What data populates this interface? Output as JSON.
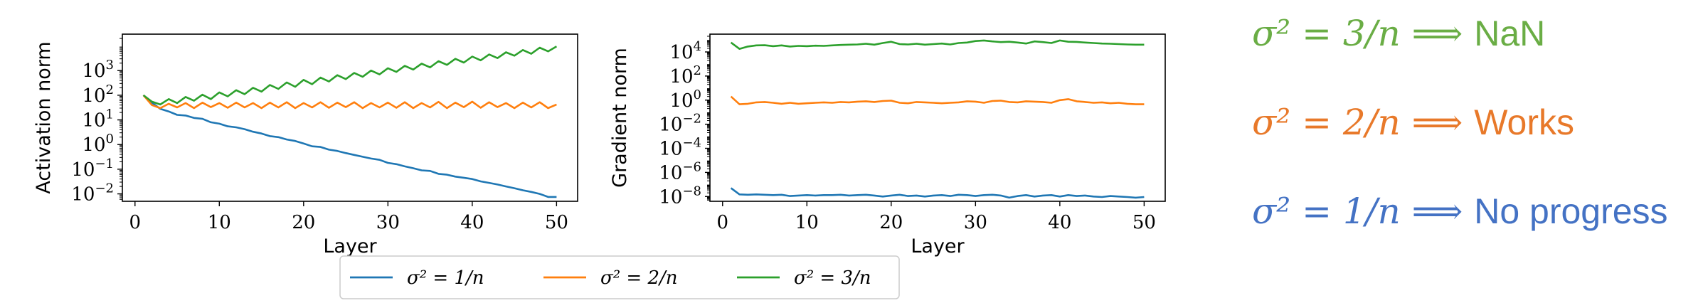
{
  "chart_data": [
    {
      "type": "line",
      "xlabel": "Layer",
      "ylabel": "Activation norm",
      "yscale": "log",
      "xlim": [
        1,
        50
      ],
      "ylim": [
        0.003,
        30000
      ],
      "xticks": [
        0,
        10,
        20,
        30,
        40,
        50
      ],
      "yticks": [
        {
          "value": 0.01,
          "base": "10",
          "exp": "−2"
        },
        {
          "value": 0.1,
          "base": "10",
          "exp": "−1"
        },
        {
          "value": 1,
          "base": "10",
          "exp": "0"
        },
        {
          "value": 10,
          "base": "10",
          "exp": "1"
        },
        {
          "value": 100,
          "base": "10",
          "exp": "2"
        },
        {
          "value": 1000,
          "base": "10",
          "exp": "3"
        }
      ],
      "grid": false,
      "series": [
        {
          "name": "σ² = 1/n",
          "color": "#1f77b4",
          "x": [
            1,
            2,
            3,
            4,
            5,
            6,
            7,
            8,
            9,
            10,
            11,
            12,
            13,
            14,
            15,
            16,
            17,
            18,
            19,
            20,
            21,
            22,
            23,
            24,
            25,
            26,
            27,
            28,
            29,
            30,
            31,
            32,
            33,
            34,
            35,
            36,
            37,
            38,
            39,
            40,
            41,
            42,
            43,
            44,
            45,
            46,
            47,
            48,
            49,
            50
          ],
          "values": [
            100,
            50,
            28,
            22,
            16,
            15,
            12,
            11,
            8,
            7,
            5.5,
            5,
            4.2,
            3.3,
            2.8,
            2.2,
            2.0,
            1.6,
            1.4,
            1.1,
            0.85,
            0.8,
            0.62,
            0.55,
            0.45,
            0.38,
            0.32,
            0.27,
            0.24,
            0.18,
            0.16,
            0.13,
            0.11,
            0.09,
            0.085,
            0.065,
            0.06,
            0.05,
            0.045,
            0.04,
            0.032,
            0.028,
            0.024,
            0.02,
            0.017,
            0.014,
            0.012,
            0.01,
            0.0075,
            0.0075
          ]
        },
        {
          "name": "σ² = 2/n",
          "color": "#ff7f0e",
          "x": [
            1,
            2,
            3,
            4,
            5,
            6,
            7,
            8,
            9,
            10,
            11,
            12,
            13,
            14,
            15,
            16,
            17,
            18,
            19,
            20,
            21,
            22,
            23,
            24,
            25,
            26,
            27,
            28,
            29,
            30,
            31,
            32,
            33,
            34,
            35,
            36,
            37,
            38,
            39,
            40,
            41,
            42,
            43,
            44,
            45,
            46,
            47,
            48,
            49,
            50
          ],
          "values": [
            100,
            40,
            30,
            45,
            32,
            48,
            30,
            50,
            33,
            48,
            31,
            50,
            32,
            48,
            30,
            50,
            32,
            52,
            30,
            48,
            32,
            52,
            31,
            50,
            33,
            52,
            30,
            48,
            32,
            50,
            31,
            52,
            30,
            48,
            32,
            54,
            30,
            50,
            33,
            55,
            31,
            52,
            33,
            48,
            30,
            50,
            32,
            52,
            30,
            42
          ]
        },
        {
          "name": "σ² = 3/n",
          "color": "#2ca02c",
          "x": [
            1,
            2,
            3,
            4,
            5,
            6,
            7,
            8,
            9,
            10,
            11,
            12,
            13,
            14,
            15,
            16,
            17,
            18,
            19,
            20,
            21,
            22,
            23,
            24,
            25,
            26,
            27,
            28,
            29,
            30,
            31,
            32,
            33,
            34,
            35,
            36,
            37,
            38,
            39,
            40,
            41,
            42,
            43,
            44,
            45,
            46,
            47,
            48,
            49,
            50
          ],
          "values": [
            100,
            55,
            42,
            70,
            48,
            85,
            60,
            105,
            70,
            130,
            90,
            160,
            110,
            200,
            140,
            260,
            180,
            330,
            220,
            420,
            280,
            520,
            360,
            650,
            450,
            800,
            560,
            1000,
            700,
            1250,
            880,
            1550,
            1100,
            1900,
            1350,
            2400,
            1700,
            3000,
            2100,
            3700,
            2600,
            4500,
            3200,
            5500,
            4000,
            6800,
            4800,
            8500,
            6000,
            9500
          ]
        }
      ]
    },
    {
      "type": "line",
      "xlabel": "Layer",
      "ylabel": "Gradient norm",
      "yscale": "log",
      "xlim": [
        1,
        50
      ],
      "ylim": [
        1e-09,
        300000.0
      ],
      "xticks": [
        0,
        10,
        20,
        30,
        40,
        50
      ],
      "yticks": [
        {
          "value": 1e-08,
          "base": "10",
          "exp": "−8"
        },
        {
          "value": 1e-06,
          "base": "10",
          "exp": "−6"
        },
        {
          "value": 0.0001,
          "base": "10",
          "exp": "−4"
        },
        {
          "value": 0.01,
          "base": "10",
          "exp": "−2"
        },
        {
          "value": 1,
          "base": "10",
          "exp": "0"
        },
        {
          "value": 100,
          "base": "10",
          "exp": "2"
        },
        {
          "value": 10000,
          "base": "10",
          "exp": "4"
        }
      ],
      "grid": false,
      "series": [
        {
          "name": "σ² = 1/n",
          "color": "#1f77b4",
          "x": [
            1,
            2,
            3,
            4,
            5,
            6,
            7,
            8,
            9,
            10,
            11,
            12,
            13,
            14,
            15,
            16,
            17,
            18,
            19,
            20,
            21,
            22,
            23,
            24,
            25,
            26,
            27,
            28,
            29,
            30,
            31,
            32,
            33,
            34,
            35,
            36,
            37,
            38,
            39,
            40,
            41,
            42,
            43,
            44,
            45,
            46,
            47,
            48,
            49,
            50
          ],
          "values": [
            5e-08,
            1.5e-08,
            1.4e-08,
            1.5e-08,
            1.4e-08,
            1.3e-08,
            1.4e-08,
            1.1e-08,
            1.2e-08,
            1.3e-08,
            1.2e-08,
            1.3e-08,
            1.3e-08,
            1.4e-08,
            1.2e-08,
            1.3e-08,
            1.4e-08,
            1.2e-08,
            1e-08,
            1.2e-08,
            1.4e-08,
            1.1e-08,
            1.2e-08,
            1e-08,
            1.2e-08,
            1.3e-08,
            1.1e-08,
            1.4e-08,
            1.3e-08,
            1.1e-08,
            1.3e-08,
            1.4e-08,
            1.2e-08,
            8e-09,
            1.1e-08,
            1.3e-08,
            1e-08,
            1.2e-08,
            1.3e-08,
            1e-08,
            1.3e-08,
            1.1e-08,
            1.2e-08,
            1e-08,
            9e-09,
            1.1e-08,
            1e-08,
            9e-09,
            8e-09,
            9e-09
          ]
        },
        {
          "name": "σ² = 2/n",
          "color": "#ff7f0e",
          "x": [
            1,
            2,
            3,
            4,
            5,
            6,
            7,
            8,
            9,
            10,
            11,
            12,
            13,
            14,
            15,
            16,
            17,
            18,
            19,
            20,
            21,
            22,
            23,
            24,
            25,
            26,
            27,
            28,
            29,
            30,
            31,
            32,
            33,
            34,
            35,
            36,
            37,
            38,
            39,
            40,
            41,
            42,
            43,
            44,
            45,
            46,
            47,
            48,
            49,
            50
          ],
          "values": [
            2.0,
            0.45,
            0.5,
            0.65,
            0.7,
            0.6,
            0.5,
            0.6,
            0.5,
            0.55,
            0.6,
            0.65,
            0.6,
            0.7,
            0.65,
            0.75,
            0.8,
            0.7,
            0.85,
            0.9,
            0.6,
            0.55,
            0.7,
            0.65,
            0.6,
            0.55,
            0.6,
            0.65,
            0.8,
            0.75,
            0.6,
            0.85,
            0.9,
            0.7,
            0.65,
            0.8,
            0.75,
            0.7,
            0.6,
            1.0,
            1.2,
            0.8,
            0.7,
            0.6,
            0.65,
            0.55,
            0.6,
            0.5,
            0.45,
            0.45
          ]
        },
        {
          "name": "σ² = 3/n",
          "color": "#2ca02c",
          "x": [
            1,
            2,
            3,
            4,
            5,
            6,
            7,
            8,
            9,
            10,
            11,
            12,
            13,
            14,
            15,
            16,
            17,
            18,
            19,
            20,
            21,
            22,
            23,
            24,
            25,
            26,
            27,
            28,
            29,
            30,
            31,
            32,
            33,
            34,
            35,
            36,
            37,
            38,
            39,
            40,
            41,
            42,
            43,
            44,
            45,
            46,
            47,
            48,
            49,
            50
          ],
          "values": [
            60000,
            18000,
            28000,
            35000,
            36000,
            30000,
            35000,
            28000,
            32000,
            30000,
            33000,
            32000,
            35000,
            38000,
            40000,
            42000,
            48000,
            40000,
            55000,
            70000,
            45000,
            42000,
            48000,
            40000,
            45000,
            50000,
            42000,
            55000,
            60000,
            80000,
            90000,
            75000,
            65000,
            70000,
            60000,
            50000,
            75000,
            65000,
            55000,
            90000,
            70000,
            68000,
            60000,
            55000,
            50000,
            48000,
            45000,
            42000,
            40000,
            40000
          ]
        }
      ]
    }
  ],
  "legend": {
    "placement": "bottom-center",
    "items": [
      {
        "label": "σ² = 1/n",
        "color": "#1f77b4"
      },
      {
        "label": "σ² = 2/n",
        "color": "#ff7f0e"
      },
      {
        "label": "σ² = 3/n",
        "color": "#2ca02c"
      }
    ]
  },
  "annotations": [
    {
      "math": "σ² = 3/n",
      "arrow": "⟹",
      "word": "NaN",
      "color": "#6aad45"
    },
    {
      "math": "σ² = 2/n",
      "arrow": "⟹",
      "word": "Works",
      "color": "#e8792a"
    },
    {
      "math": "σ² = 1/n",
      "arrow": "⟹",
      "word": "No progress",
      "color": "#4472c4"
    }
  ]
}
